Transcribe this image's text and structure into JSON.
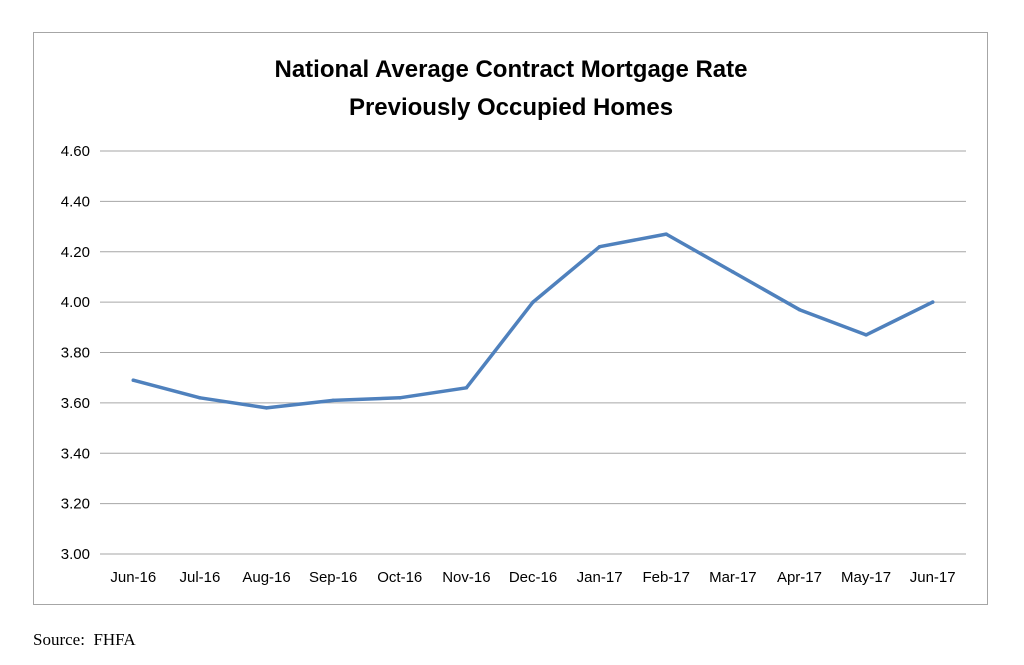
{
  "chart_data": {
    "type": "line",
    "title_lines": [
      "National Average Contract Mortgage Rate",
      "Previously Occupied Homes"
    ],
    "categories": [
      "Jun-16",
      "Jul-16",
      "Aug-16",
      "Sep-16",
      "Oct-16",
      "Nov-16",
      "Dec-16",
      "Jan-17",
      "Feb-17",
      "Mar-17",
      "Apr-17",
      "May-17",
      "Jun-17"
    ],
    "series": [
      {
        "values": [
          3.69,
          3.62,
          3.58,
          3.61,
          3.62,
          3.66,
          4.0,
          4.22,
          4.27,
          4.12,
          3.97,
          3.87,
          4.0
        ],
        "color": "#4f81bd"
      }
    ],
    "ylim": [
      3.0,
      4.6
    ],
    "yticks": [
      "3.00",
      "3.20",
      "3.40",
      "3.60",
      "3.80",
      "4.00",
      "4.20",
      "4.40",
      "4.60"
    ],
    "xlabel": "",
    "ylabel": "",
    "grid": true,
    "legend": "none",
    "gridline_color": "#a6a6a6"
  },
  "source": {
    "label": "Source:",
    "value": "FHFA"
  }
}
